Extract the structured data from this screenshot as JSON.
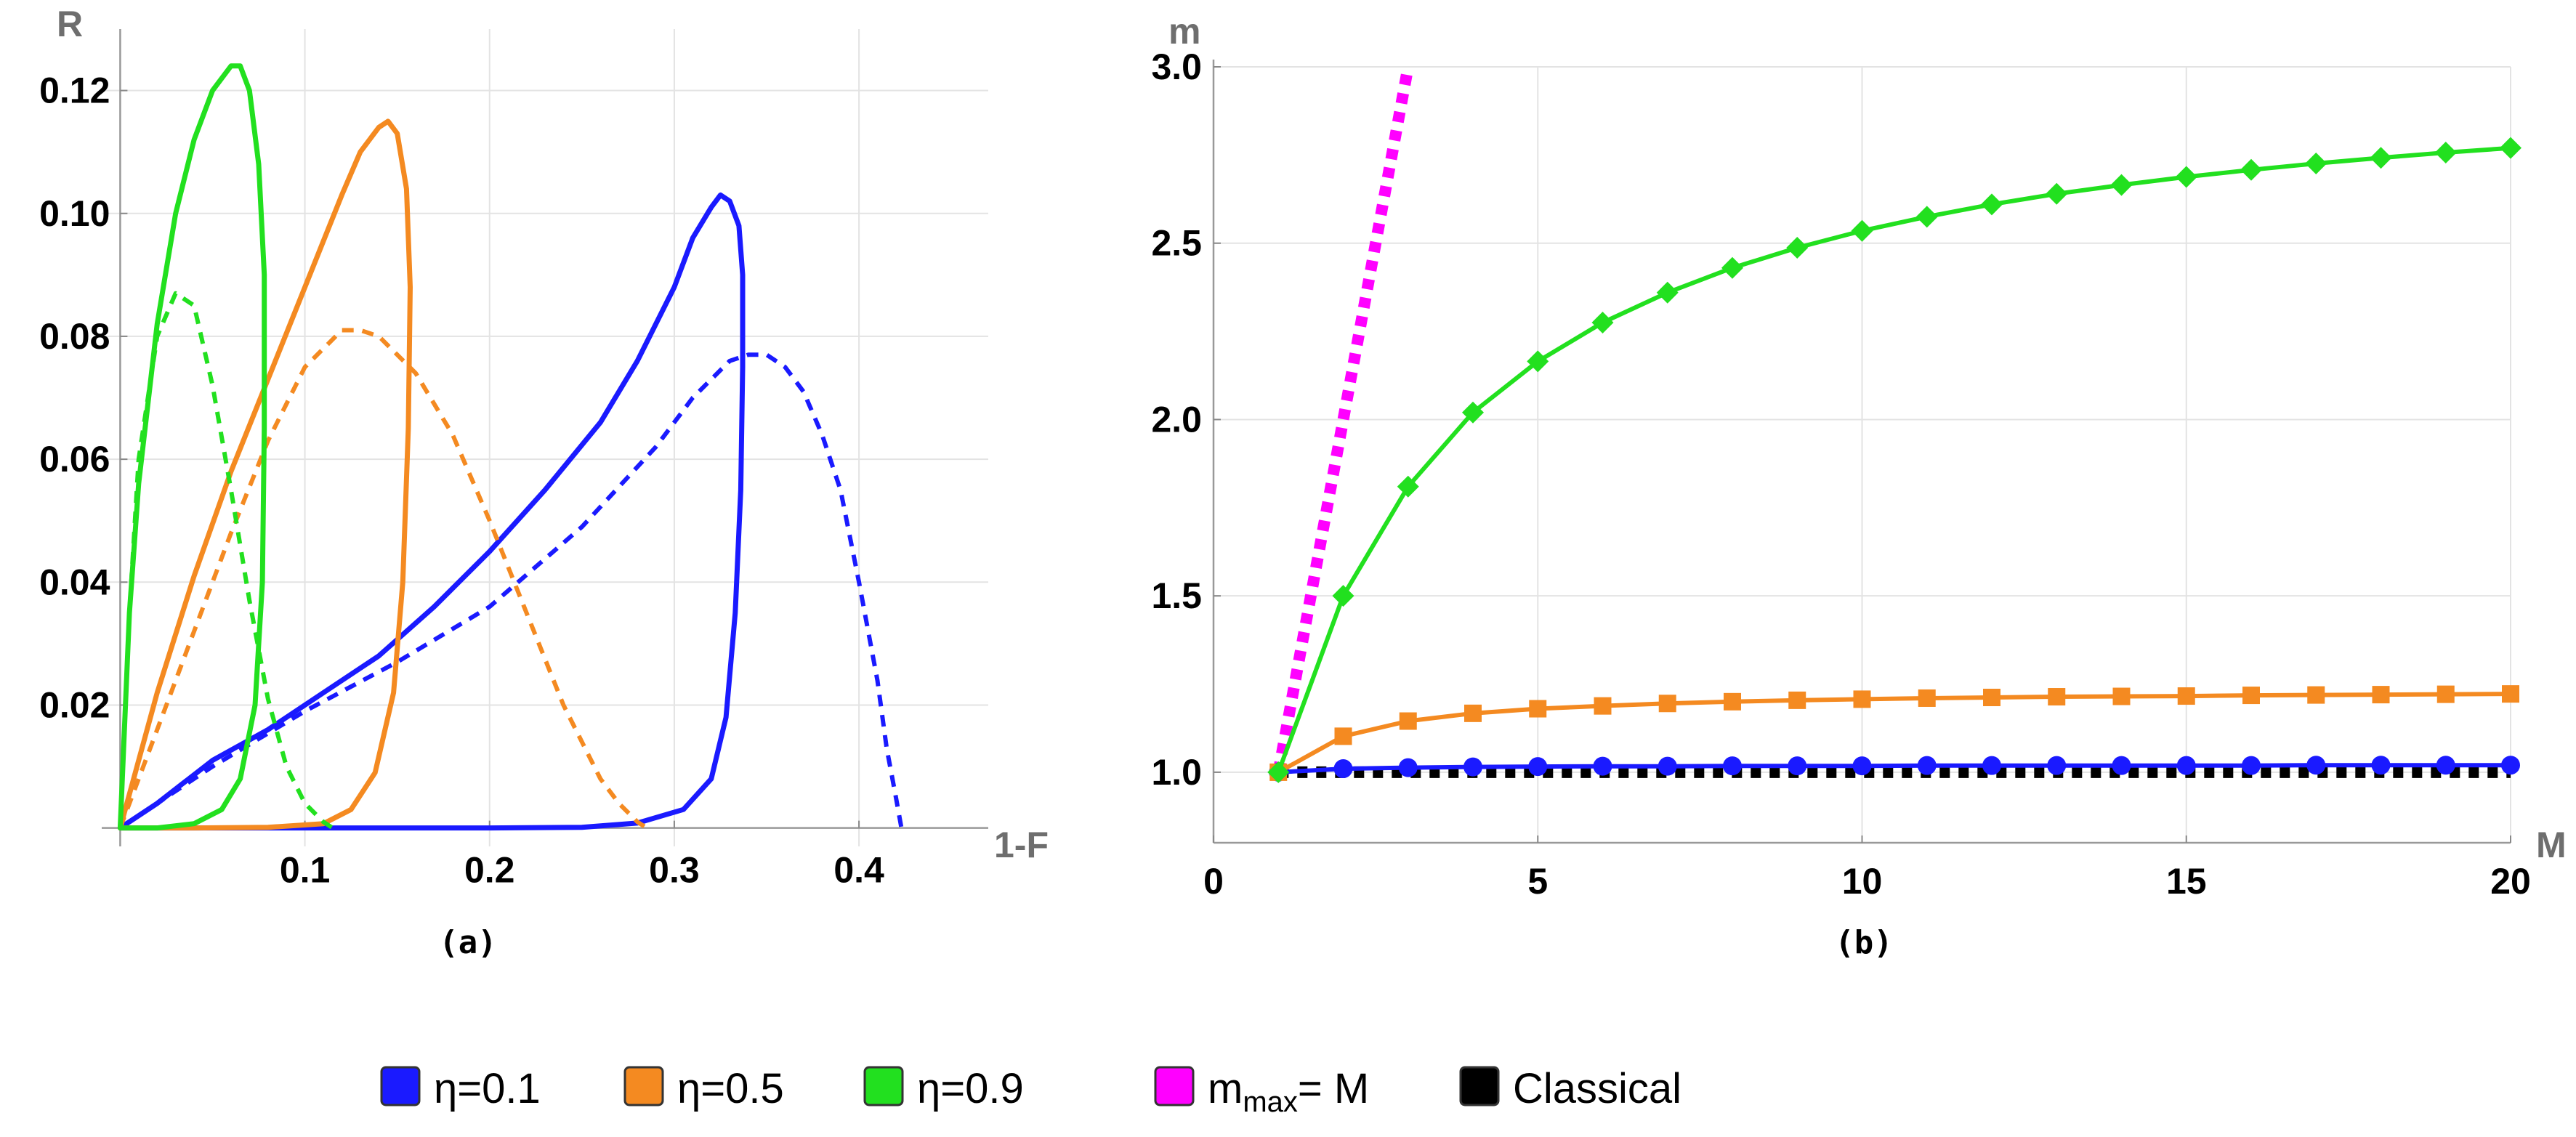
{
  "chart_data": [
    {
      "type": "line",
      "panel_label": "(a)",
      "xlabel": "1-F",
      "ylabel": "R",
      "xlim": [
        -0.01,
        0.47
      ],
      "ylim": [
        -0.003,
        0.13
      ],
      "xticks": [
        "0.1",
        "0.2",
        "0.3",
        "0.4"
      ],
      "xtick_values": [
        0.1,
        0.2,
        0.3,
        0.4
      ],
      "yticks": [
        "0.02",
        "0.04",
        "0.06",
        "0.08",
        "0.10",
        "0.12"
      ],
      "ytick_values": [
        0.02,
        0.04,
        0.06,
        0.08,
        0.1,
        0.12
      ],
      "grid": true,
      "series": [
        {
          "name": "η=0.1 solid",
          "color": "#1a1aff",
          "style": "solid",
          "points": [
            [
              0,
              0
            ],
            [
              0.02,
              0.004
            ],
            [
              0.05,
              0.011
            ],
            [
              0.08,
              0.016
            ],
            [
              0.11,
              0.022
            ],
            [
              0.14,
              0.028
            ],
            [
              0.17,
              0.036
            ],
            [
              0.2,
              0.045
            ],
            [
              0.23,
              0.055
            ],
            [
              0.26,
              0.066
            ],
            [
              0.28,
              0.076
            ],
            [
              0.3,
              0.088
            ],
            [
              0.31,
              0.096
            ],
            [
              0.32,
              0.101
            ],
            [
              0.325,
              0.103
            ],
            [
              0.33,
              0.102
            ],
            [
              0.335,
              0.098
            ],
            [
              0.337,
              0.09
            ],
            [
              0.337,
              0.075
            ],
            [
              0.336,
              0.055
            ],
            [
              0.333,
              0.035
            ],
            [
              0.328,
              0.018
            ],
            [
              0.32,
              0.008
            ],
            [
              0.305,
              0.003
            ],
            [
              0.28,
              0.0008
            ],
            [
              0.25,
              0.0001
            ],
            [
              0.2,
              0
            ],
            [
              0.15,
              0
            ],
            [
              0.08,
              0
            ],
            [
              0.03,
              0
            ],
            [
              0,
              0
            ]
          ]
        },
        {
          "name": "η=0.1 dashed",
          "color": "#1a1aff",
          "style": "dashed",
          "points": [
            [
              0,
              0
            ],
            [
              0.05,
              0.01
            ],
            [
              0.1,
              0.019
            ],
            [
              0.15,
              0.027
            ],
            [
              0.2,
              0.036
            ],
            [
              0.25,
              0.049
            ],
            [
              0.29,
              0.062
            ],
            [
              0.31,
              0.07
            ],
            [
              0.33,
              0.076
            ],
            [
              0.34,
              0.077
            ],
            [
              0.35,
              0.077
            ],
            [
              0.36,
              0.075
            ],
            [
              0.37,
              0.071
            ],
            [
              0.38,
              0.064
            ],
            [
              0.39,
              0.055
            ],
            [
              0.4,
              0.04
            ],
            [
              0.41,
              0.024
            ],
            [
              0.415,
              0.013
            ],
            [
              0.42,
              0.005
            ],
            [
              0.423,
              0
            ]
          ]
        },
        {
          "name": "η=0.5 solid",
          "color": "#f48a21",
          "style": "solid",
          "points": [
            [
              0,
              0
            ],
            [
              0.02,
              0.022
            ],
            [
              0.04,
              0.041
            ],
            [
              0.06,
              0.058
            ],
            [
              0.08,
              0.073
            ],
            [
              0.1,
              0.088
            ],
            [
              0.12,
              0.103
            ],
            [
              0.13,
              0.11
            ],
            [
              0.14,
              0.114
            ],
            [
              0.145,
              0.115
            ],
            [
              0.15,
              0.113
            ],
            [
              0.155,
              0.104
            ],
            [
              0.157,
              0.088
            ],
            [
              0.156,
              0.065
            ],
            [
              0.153,
              0.04
            ],
            [
              0.148,
              0.022
            ],
            [
              0.138,
              0.009
            ],
            [
              0.125,
              0.003
            ],
            [
              0.11,
              0.0007
            ],
            [
              0.08,
              0.0001
            ],
            [
              0.04,
              0
            ],
            [
              0,
              0
            ]
          ]
        },
        {
          "name": "η=0.5 dashed",
          "color": "#f48a21",
          "style": "dashed",
          "points": [
            [
              0,
              0
            ],
            [
              0.02,
              0.016
            ],
            [
              0.04,
              0.032
            ],
            [
              0.06,
              0.048
            ],
            [
              0.08,
              0.063
            ],
            [
              0.1,
              0.075
            ],
            [
              0.12,
              0.081
            ],
            [
              0.13,
              0.081
            ],
            [
              0.14,
              0.08
            ],
            [
              0.16,
              0.074
            ],
            [
              0.18,
              0.064
            ],
            [
              0.2,
              0.05
            ],
            [
              0.22,
              0.035
            ],
            [
              0.24,
              0.02
            ],
            [
              0.26,
              0.008
            ],
            [
              0.27,
              0.004
            ],
            [
              0.28,
              0.001
            ],
            [
              0.285,
              0
            ]
          ]
        },
        {
          "name": "η=0.9 solid",
          "color": "#22e01f",
          "style": "solid",
          "points": [
            [
              0,
              0
            ],
            [
              0.005,
              0.035
            ],
            [
              0.01,
              0.056
            ],
            [
              0.02,
              0.082
            ],
            [
              0.03,
              0.1
            ],
            [
              0.04,
              0.112
            ],
            [
              0.05,
              0.12
            ],
            [
              0.06,
              0.124
            ],
            [
              0.065,
              0.124
            ],
            [
              0.07,
              0.12
            ],
            [
              0.075,
              0.108
            ],
            [
              0.078,
              0.09
            ],
            [
              0.078,
              0.065
            ],
            [
              0.077,
              0.04
            ],
            [
              0.073,
              0.02
            ],
            [
              0.065,
              0.008
            ],
            [
              0.055,
              0.003
            ],
            [
              0.04,
              0.0007
            ],
            [
              0.02,
              0
            ],
            [
              0,
              0
            ]
          ]
        },
        {
          "name": "η=0.9 dashed",
          "color": "#22e01f",
          "style": "dashed",
          "points": [
            [
              0,
              0
            ],
            [
              0.005,
              0.035
            ],
            [
              0.01,
              0.06
            ],
            [
              0.02,
              0.08
            ],
            [
              0.03,
              0.087
            ],
            [
              0.04,
              0.085
            ],
            [
              0.05,
              0.072
            ],
            [
              0.06,
              0.055
            ],
            [
              0.07,
              0.037
            ],
            [
              0.08,
              0.021
            ],
            [
              0.09,
              0.01
            ],
            [
              0.1,
              0.004
            ],
            [
              0.11,
              0.001
            ],
            [
              0.115,
              0
            ]
          ]
        }
      ]
    },
    {
      "type": "line",
      "panel_label": "(b)",
      "xlabel": "M",
      "ylabel": "m",
      "xlim": [
        0,
        20
      ],
      "ylim": [
        0.8,
        3.0
      ],
      "xticks": [
        "0",
        "5",
        "10",
        "15",
        "20"
      ],
      "xtick_values": [
        0,
        5,
        10,
        15,
        20
      ],
      "yticks": [
        "1.0",
        "1.5",
        "2.0",
        "2.5",
        "3.0"
      ],
      "ytick_values": [
        1.0,
        1.5,
        2.0,
        2.5,
        3.0
      ],
      "grid": true,
      "x": [
        1,
        2,
        3,
        4,
        5,
        6,
        7,
        8,
        9,
        10,
        11,
        12,
        13,
        14,
        15,
        16,
        17,
        18,
        19,
        20
      ],
      "series": [
        {
          "name": "η=0.1",
          "color": "#1a1aff",
          "marker": "circle",
          "values": [
            1.0,
            1.01,
            1.013,
            1.015,
            1.016,
            1.017,
            1.017,
            1.018,
            1.018,
            1.018,
            1.019,
            1.019,
            1.019,
            1.019,
            1.019,
            1.019,
            1.02,
            1.02,
            1.02,
            1.02
          ]
        },
        {
          "name": "η=0.5",
          "color": "#f48a21",
          "marker": "square",
          "values": [
            1.0,
            1.102,
            1.145,
            1.167,
            1.18,
            1.188,
            1.195,
            1.2,
            1.204,
            1.207,
            1.21,
            1.212,
            1.214,
            1.215,
            1.216,
            1.218,
            1.219,
            1.22,
            1.221,
            1.222
          ]
        },
        {
          "name": "η=0.9",
          "color": "#22e01f",
          "marker": "diamond",
          "values": [
            1.0,
            1.5,
            1.81,
            2.02,
            2.165,
            2.275,
            2.36,
            2.43,
            2.487,
            2.535,
            2.575,
            2.61,
            2.64,
            2.665,
            2.688,
            2.708,
            2.726,
            2.742,
            2.757,
            2.77
          ]
        },
        {
          "name": "m_max=M",
          "color": "#ff00ff",
          "style": "dotted",
          "points": [
            [
              1,
              1.0
            ],
            [
              3,
              3.0
            ]
          ]
        },
        {
          "name": "Classical",
          "color": "#000000",
          "style": "dotted",
          "points": [
            [
              1,
              1.0
            ],
            [
              20,
              1.0
            ]
          ]
        }
      ]
    }
  ],
  "legend": [
    {
      "label": "η=0.1",
      "color": "#1a1aff"
    },
    {
      "label": "η=0.5",
      "color": "#f48a21"
    },
    {
      "label": "η=0.9",
      "color": "#22e01f"
    },
    {
      "label_main": "m",
      "label_sub": "max",
      "label_tail": "= M",
      "color": "#ff00ff"
    },
    {
      "label": "Classical",
      "color": "#000000"
    }
  ]
}
